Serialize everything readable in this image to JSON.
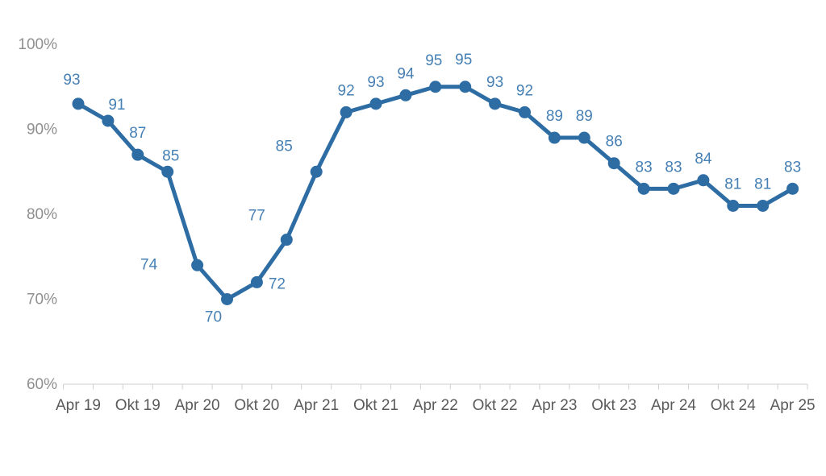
{
  "chart_data": {
    "type": "line",
    "title": "",
    "xlabel": "",
    "ylabel": "",
    "point_interval": "quarterly",
    "values": [
      93,
      91,
      87,
      85,
      74,
      70,
      72,
      77,
      85,
      92,
      93,
      94,
      95,
      95,
      93,
      92,
      89,
      89,
      86,
      83,
      83,
      84,
      81,
      81,
      83
    ],
    "data_labels": [
      "93",
      "91",
      "87",
      "85",
      "74",
      "70",
      "72",
      "77",
      "85",
      "92",
      "93",
      "94",
      "95",
      "95",
      "93",
      "92",
      "89",
      "89",
      "86",
      "83",
      "83",
      "84",
      "81",
      "81",
      "83"
    ],
    "x_tick_labels": [
      "Apr 19",
      "Okt 19",
      "Apr 20",
      "Okt 20",
      "Apr 21",
      "Okt 21",
      "Apr 22",
      "Okt 22",
      "Apr 23",
      "Okt 23",
      "Apr 24",
      "Okt 24",
      "Apr 25"
    ],
    "x_label_every_n_points": 2,
    "y_tick_labels": [
      "100%",
      "90%",
      "80%",
      "70%",
      "60%"
    ],
    "y_tick_values": [
      100,
      90,
      80,
      70,
      60
    ],
    "ylim": [
      60,
      100
    ],
    "grid": "off",
    "legend": "none",
    "data_labels_shown": true,
    "default_label_offset": [
      0,
      -27
    ],
    "label_offsets": {
      "0": [
        -8,
        -30
      ],
      "1": [
        11,
        -20
      ],
      "3": [
        4,
        -20
      ],
      "4": [
        -60,
        -1
      ],
      "5": [
        -17,
        22
      ],
      "6": [
        25,
        2
      ],
      "7": [
        -37,
        -30
      ],
      "8": [
        -40,
        -32
      ],
      "12": [
        -2,
        -33
      ],
      "13": [
        -2,
        -34
      ]
    },
    "colors": {
      "line": "#2e6da4",
      "marker": "#2e6da4",
      "data_label": "#4680b4",
      "axis_line": "#cfcfcf",
      "tick_mark": "#cfcfcf",
      "x_tick_label": "#5a5a5a",
      "y_tick_label": "#8f8f8f"
    }
  }
}
